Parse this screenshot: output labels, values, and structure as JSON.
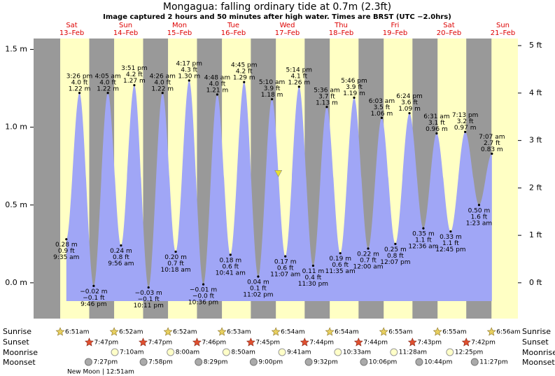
{
  "chart_data": {
    "type": "area",
    "title": "Mongagua: falling  ordinary tide at 0.7m (2.3ft)",
    "subtitle": "Image captured 2 hours and 50 minutes after high water. Times are BRST (UTC −2.0hrs)",
    "days": [
      {
        "day": "Sat",
        "date": "13–Feb"
      },
      {
        "day": "Sun",
        "date": "14–Feb"
      },
      {
        "day": "Mon",
        "date": "15–Feb"
      },
      {
        "day": "Tue",
        "date": "16–Feb"
      },
      {
        "day": "Wed",
        "date": "17–Feb"
      },
      {
        "day": "Thu",
        "date": "18–Feb"
      },
      {
        "day": "Fri",
        "date": "19–Feb"
      },
      {
        "day": "Sat",
        "date": "20–Feb"
      },
      {
        "day": "Sun",
        "date": "21–Feb"
      }
    ],
    "x": [
      9.583,
      15.433,
      21.767,
      28.083,
      33.933,
      39.85,
      46.183,
      52.433,
      58.3,
      64.283,
      70.6,
      76.8,
      82.683,
      88.75,
      95.033,
      101.167,
      107.117,
      113.233,
      119.5,
      125.6,
      131.583,
      137.767,
      144.0,
      150.05,
      156.117,
      162.4,
      168.6,
      174.517,
      180.75,
      187.217,
      193.383,
      199.117
    ],
    "values": [
      0.28,
      1.22,
      -0.02,
      1.22,
      0.24,
      1.27,
      -0.03,
      1.22,
      0.2,
      1.3,
      -0.01,
      1.21,
      0.18,
      1.29,
      0.04,
      1.18,
      0.17,
      1.26,
      0.11,
      1.13,
      0.19,
      1.19,
      0.22,
      1.06,
      0.25,
      1.09,
      0.35,
      0.96,
      0.33,
      0.97,
      0.5,
      0.83
    ],
    "value_labels": [
      "0.28 m",
      "1.22 m",
      "−0.02 m",
      "1.22 m",
      "0.24 m",
      "1.27 m",
      "−0.03 m",
      "1.22 m",
      "0.20 m",
      "1.30 m",
      "−0.01 m",
      "1.21 m",
      "0.18 m",
      "1.29 m",
      "0.04 m",
      "1.18 m",
      "0.17 m",
      "1.26 m",
      "0.11 m",
      "1.13 m",
      "0.19 m",
      "1.19 m",
      "0.22 m",
      "1.06 m",
      "0.25 m",
      "1.09 m",
      "0.35 m",
      "0.96 m",
      "0.33 m",
      "0.97 m",
      "0.50 m",
      "0.83 m"
    ],
    "ft_labels": [
      "0.9 ft",
      "4.0 ft",
      "−0.1 ft",
      "4.0 ft",
      "0.8 ft",
      "4.2 ft",
      "−0.1 ft",
      "4.0 ft",
      "0.7 ft",
      "4.3 ft",
      "−0.0 ft",
      "4.0 ft",
      "0.6 ft",
      "4.2 ft",
      "0.1 ft",
      "3.9 ft",
      "0.6 ft",
      "4.1 ft",
      "0.4 ft",
      "3.7 ft",
      "0.6 ft",
      "3.9 ft",
      "0.7 ft",
      "3.5 ft",
      "0.8 ft",
      "3.6 ft",
      "1.1 ft",
      "3.1 ft",
      "1.1 ft",
      "3.2 ft",
      "1.6 ft",
      "2.7 ft"
    ],
    "time_labels": [
      "9:35 am",
      "3:26 pm",
      "9:46 pm",
      "4:05 am",
      "9:56 am",
      "3:51 pm",
      "10:11 pm",
      "4:26 am",
      "10:18 am",
      "4:17 pm",
      "10:36 pm",
      "4:48 am",
      "10:41 am",
      "4:45 pm",
      "11:02 pm",
      "5:10 am",
      "11:07 am",
      "5:14 pm",
      "11:30 pm",
      "5:36 am",
      "11:35 am",
      "5:46 pm",
      "12:00 am",
      "6:03 am",
      "12:07 pm",
      "6:24 pm",
      "12:36 am",
      "6:31 am",
      "12:45 pm",
      "7:13 pm",
      "1:23 am",
      "7:07 am"
    ],
    "color": "#a0a6f6",
    "xlim": [
      -5,
      210.7
    ],
    "ylim": [
      -0.23,
      1.57
    ],
    "yticks": [
      {
        "value": 0,
        "label": "0.0 m"
      },
      {
        "value": 0.5,
        "label": "0.5 m"
      },
      {
        "value": 1,
        "label": "1.0 m"
      },
      {
        "value": 1.5,
        "label": "1.5 m"
      }
    ],
    "y2lim": [
      -0.755,
      5.15
    ],
    "y2ticks": [
      {
        "value": 0,
        "label": "0 ft"
      },
      {
        "value": 1,
        "label": "1 ft"
      },
      {
        "value": 2,
        "label": "2 ft"
      },
      {
        "value": 3,
        "label": "3 ft"
      },
      {
        "value": 4,
        "label": "4 ft"
      },
      {
        "value": 5,
        "label": "5 ft"
      }
    ],
    "now": {
      "x": 104.0,
      "value": 0.7,
      "color": "#e8e030"
    },
    "day_color": "#ffffc4",
    "night_color": "#999999",
    "sun": {
      "sunrise_label": "Sunrise",
      "sunset_label": "Sunset",
      "sunrise": [
        {
          "x": 6.85,
          "label": "6:51am"
        },
        {
          "x": 30.867,
          "label": "6:52am"
        },
        {
          "x": 54.867,
          "label": "6:52am"
        },
        {
          "x": 78.883,
          "label": "6:53am"
        },
        {
          "x": 102.9,
          "label": "6:54am"
        },
        {
          "x": 126.9,
          "label": "6:54am"
        },
        {
          "x": 150.917,
          "label": "6:55am"
        },
        {
          "x": 174.917,
          "label": "6:55am"
        },
        {
          "x": 198.933,
          "label": "6:56am"
        }
      ],
      "sunset": [
        {
          "x": 19.783,
          "label": "7:47pm"
        },
        {
          "x": 43.783,
          "label": "7:47pm"
        },
        {
          "x": 67.767,
          "label": "7:46pm"
        },
        {
          "x": 91.75,
          "label": "7:45pm"
        },
        {
          "x": 115.733,
          "label": "7:44pm"
        },
        {
          "x": 139.733,
          "label": "7:44pm"
        },
        {
          "x": 163.733,
          "label": "7:43pm"
        },
        {
          "x": 187.7,
          "label": "7:42pm"
        }
      ]
    },
    "moon": {
      "moonrise_label": "Moonrise",
      "moonset_label": "Moonset",
      "moonrise": [
        {
          "x": 31.167,
          "label": "7:10am"
        },
        {
          "x": 56.0,
          "label": "8:00am"
        },
        {
          "x": 80.833,
          "label": "8:50am"
        },
        {
          "x": 105.683,
          "label": "9:41am"
        },
        {
          "x": 130.55,
          "label": "10:33am"
        },
        {
          "x": 155.467,
          "label": "11:28am"
        },
        {
          "x": 180.417,
          "label": "12:25pm"
        }
      ],
      "moonset": [
        {
          "x": 19.45,
          "label": "7:27pm"
        },
        {
          "x": 43.967,
          "label": "7:58pm"
        },
        {
          "x": 68.483,
          "label": "8:29pm"
        },
        {
          "x": 93.0,
          "label": "9:00pm"
        },
        {
          "x": 117.533,
          "label": "9:32pm"
        },
        {
          "x": 142.1,
          "label": "10:06pm"
        },
        {
          "x": 166.733,
          "label": "10:44pm"
        },
        {
          "x": 191.45,
          "label": "11:27pm"
        }
      ],
      "phase": "New Moon | 12:51am"
    }
  }
}
